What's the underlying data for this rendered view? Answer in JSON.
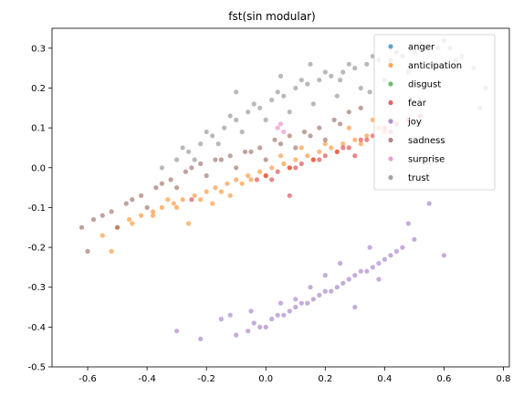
{
  "chart_data": {
    "type": "scatter",
    "title": "fst(sin modular)",
    "xlabel": "",
    "ylabel": "",
    "xlim": [
      -0.72,
      0.82
    ],
    "ylim": [
      -0.5,
      0.35
    ],
    "xticks": [
      -0.6,
      -0.4,
      -0.2,
      0.0,
      0.2,
      0.4,
      0.6,
      0.8
    ],
    "yticks": [
      -0.5,
      -0.4,
      -0.3,
      -0.2,
      -0.1,
      0.0,
      0.1,
      0.2,
      0.3
    ],
    "grid": false,
    "legend_position": "top-right",
    "series": [
      {
        "name": "anger",
        "color": "#1f77b4",
        "x": [],
        "y": []
      },
      {
        "name": "anticipation",
        "color": "#ff7f0e",
        "x": [
          -0.55,
          -0.5,
          -0.46,
          -0.42,
          -0.38,
          -0.35,
          -0.31,
          -0.28,
          -0.24,
          -0.2,
          -0.17,
          -0.13,
          -0.1,
          -0.06,
          -0.02,
          0.02,
          0.06,
          0.1,
          0.14,
          0.18,
          0.22,
          0.26,
          0.3,
          0.34,
          0.38,
          0.42,
          -0.45,
          -0.38,
          -0.3,
          -0.22,
          -0.15,
          -0.08,
          0.0,
          0.08,
          0.16,
          0.24,
          0.32,
          0.4,
          -0.52,
          -0.33,
          -0.12,
          0.05,
          0.2,
          0.36,
          -0.26,
          -0.18,
          -0.05,
          0.12,
          0.28
        ],
        "y": [
          -0.17,
          -0.15,
          -0.13,
          -0.12,
          -0.11,
          -0.1,
          -0.09,
          -0.08,
          -0.07,
          -0.06,
          -0.05,
          -0.04,
          -0.03,
          -0.02,
          -0.01,
          0.0,
          0.01,
          0.02,
          0.03,
          0.04,
          0.05,
          0.06,
          0.07,
          0.08,
          0.1,
          0.12,
          -0.14,
          -0.12,
          -0.1,
          -0.08,
          -0.06,
          -0.04,
          -0.02,
          0.0,
          0.02,
          0.04,
          0.06,
          0.09,
          -0.21,
          -0.08,
          -0.07,
          0.03,
          0.06,
          0.12,
          -0.14,
          -0.09,
          -0.03,
          0.05,
          0.1
        ]
      },
      {
        "name": "disgust",
        "color": "#2ca02c",
        "x": [],
        "y": []
      },
      {
        "name": "fear",
        "color": "#d62728",
        "x": [
          -0.03,
          0.0,
          0.04,
          0.08,
          0.12,
          0.16,
          0.2,
          0.24,
          0.28,
          0.32,
          0.36,
          0.4,
          0.44,
          0.48,
          0.52,
          0.02,
          0.1,
          0.18,
          0.26,
          0.34,
          0.42,
          -0.25,
          0.08,
          0.3
        ],
        "y": [
          -0.03,
          -0.02,
          -0.01,
          0.0,
          0.01,
          0.02,
          0.03,
          0.04,
          0.05,
          0.07,
          0.08,
          0.1,
          0.11,
          0.12,
          0.13,
          -0.03,
          0.0,
          0.02,
          0.05,
          0.07,
          0.09,
          -0.08,
          -0.07,
          0.03
        ]
      },
      {
        "name": "joy",
        "color": "#9467bd",
        "x": [
          -0.1,
          -0.06,
          -0.02,
          0.02,
          0.06,
          0.1,
          0.14,
          0.18,
          0.22,
          0.26,
          0.3,
          0.34,
          0.38,
          0.42,
          0.46,
          0.5,
          -0.04,
          0.04,
          0.12,
          0.2,
          0.28,
          0.36,
          0.44,
          0.0,
          0.08,
          0.16,
          0.24,
          0.32,
          0.4,
          -0.22,
          -0.3,
          -0.15,
          0.48,
          0.55,
          0.3,
          0.1,
          -0.05,
          0.2,
          0.35,
          -0.12,
          0.6,
          0.15,
          0.25,
          0.05,
          0.38
        ],
        "y": [
          -0.42,
          -0.41,
          -0.4,
          -0.38,
          -0.37,
          -0.35,
          -0.34,
          -0.32,
          -0.31,
          -0.29,
          -0.27,
          -0.26,
          -0.24,
          -0.22,
          -0.2,
          -0.18,
          -0.39,
          -0.37,
          -0.34,
          -0.31,
          -0.28,
          -0.25,
          -0.21,
          -0.4,
          -0.36,
          -0.33,
          -0.3,
          -0.26,
          -0.23,
          -0.43,
          -0.41,
          -0.38,
          -0.14,
          -0.09,
          -0.35,
          -0.33,
          -0.36,
          -0.27,
          -0.2,
          -0.37,
          -0.22,
          -0.3,
          -0.24,
          -0.34,
          -0.28
        ]
      },
      {
        "name": "sadness",
        "color": "#8c564b",
        "x": [
          -0.62,
          -0.58,
          -0.52,
          -0.47,
          -0.42,
          -0.37,
          -0.32,
          -0.27,
          -0.22,
          -0.17,
          -0.12,
          -0.07,
          -0.02,
          0.03,
          0.08,
          0.13,
          0.18,
          0.23,
          0.28,
          -0.55,
          -0.45,
          -0.35,
          -0.25,
          -0.15,
          -0.05,
          0.05,
          0.15,
          0.25,
          -0.6,
          -0.5,
          -0.4,
          -0.3,
          -0.2,
          -0.1,
          0.0,
          0.1,
          0.2,
          0.32
        ],
        "y": [
          -0.15,
          -0.13,
          -0.11,
          -0.09,
          -0.07,
          -0.05,
          -0.03,
          -0.01,
          0.01,
          0.02,
          0.03,
          0.04,
          0.05,
          0.07,
          0.08,
          0.09,
          0.1,
          0.12,
          0.14,
          -0.12,
          -0.08,
          -0.04,
          0.0,
          0.02,
          0.04,
          0.06,
          0.08,
          0.11,
          -0.21,
          -0.15,
          -0.1,
          -0.05,
          -0.02,
          0.0,
          0.02,
          0.05,
          0.07,
          0.15
        ]
      },
      {
        "name": "surprise",
        "color": "#e377c2",
        "x": [
          0.04,
          0.05,
          0.06
        ],
        "y": [
          0.1,
          0.11,
          0.09
        ]
      },
      {
        "name": "trust",
        "color": "#7f7f7f",
        "x": [
          -0.35,
          -0.3,
          -0.26,
          -0.22,
          -0.18,
          -0.14,
          -0.1,
          -0.06,
          -0.02,
          0.02,
          0.06,
          0.1,
          0.14,
          0.18,
          0.22,
          0.26,
          0.3,
          0.34,
          0.38,
          0.42,
          0.46,
          0.5,
          0.54,
          0.58,
          0.62,
          0.66,
          0.7,
          0.74,
          -0.28,
          -0.2,
          -0.12,
          -0.04,
          0.04,
          0.12,
          0.2,
          0.28,
          0.36,
          0.44,
          0.52,
          0.6,
          -0.24,
          -0.16,
          -0.08,
          0.0,
          0.08,
          0.16,
          0.24,
          0.32,
          0.4,
          0.48,
          0.56,
          0.64,
          0.72,
          -0.1,
          0.05,
          0.15,
          0.25,
          0.35
        ],
        "y": [
          0.0,
          0.02,
          0.04,
          0.06,
          0.08,
          0.1,
          0.12,
          0.14,
          0.15,
          0.17,
          0.18,
          0.2,
          0.21,
          0.22,
          0.23,
          0.24,
          0.25,
          0.26,
          0.27,
          0.27,
          0.28,
          0.29,
          0.3,
          0.3,
          0.3,
          0.28,
          0.25,
          0.2,
          0.05,
          0.09,
          0.13,
          0.16,
          0.19,
          0.22,
          0.24,
          0.26,
          0.28,
          0.29,
          0.31,
          0.32,
          0.02,
          0.06,
          0.09,
          0.12,
          0.14,
          0.16,
          0.18,
          0.2,
          0.22,
          0.24,
          0.26,
          0.27,
          0.15,
          0.19,
          0.23,
          0.26,
          0.22,
          0.19
        ]
      }
    ]
  }
}
